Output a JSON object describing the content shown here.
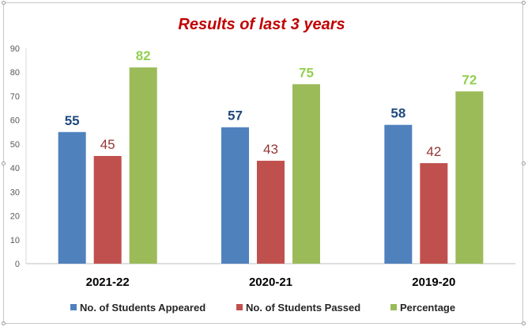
{
  "chart_data": {
    "type": "bar",
    "title": "Results of last 3 years",
    "categories": [
      "2021-22",
      "2020-21",
      "2019-20"
    ],
    "series": [
      {
        "name": "No. of Students Appeared",
        "values": [
          55,
          57,
          58
        ],
        "color": "#4f81bd",
        "label_color": "#1f497d",
        "label_bold": true
      },
      {
        "name": "No. of Students Passed",
        "values": [
          45,
          43,
          42
        ],
        "color": "#c0504d",
        "label_color": "#943634",
        "label_bold": false
      },
      {
        "name": "Percentage",
        "values": [
          82,
          75,
          72
        ],
        "color": "#9bbb59",
        "label_color": "#92d050",
        "label_bold": true
      }
    ],
    "ylim": [
      0,
      90
    ],
    "yticks": [
      0,
      10,
      20,
      30,
      40,
      50,
      60,
      70,
      80,
      90
    ],
    "xlabel": "",
    "ylabel": "",
    "grid": false,
    "legend": "bottom"
  }
}
